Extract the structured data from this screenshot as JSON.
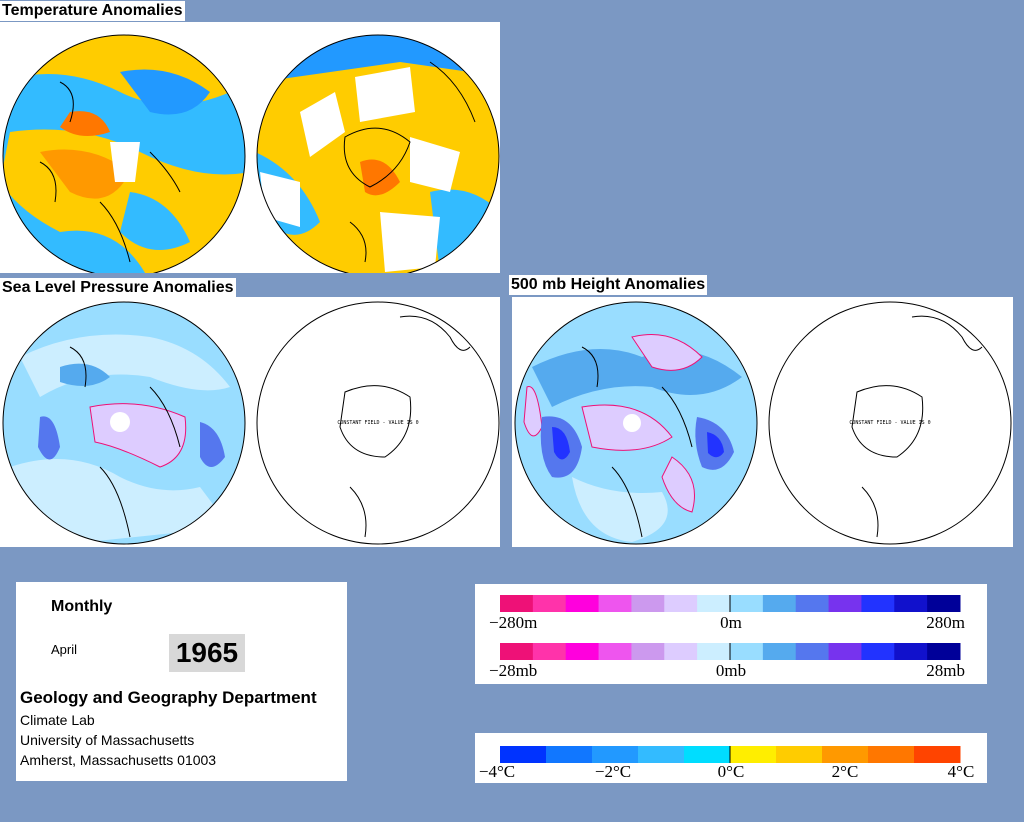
{
  "panels": {
    "temperature": {
      "title": "Temperature Anomalies"
    },
    "slp": {
      "title": "Sea Level Pressure Anomalies",
      "constant_label": "CONSTANT FIELD - VALUE IS 0"
    },
    "h500": {
      "title": "500 mb Height Anomalies",
      "constant_label": "CONSTANT FIELD - VALUE IS 0"
    }
  },
  "info": {
    "period": "Monthly",
    "month": "April",
    "year": "1965",
    "department": "Geology and Geography Department",
    "lab": "Climate Lab",
    "university": "University of Massachusetts",
    "address": "Amherst, Massachusetts 01003"
  },
  "legends": {
    "height": {
      "min_label": "−280m",
      "mid_label": "0m",
      "max_label": "280m"
    },
    "pressure": {
      "min_label": "−28mb",
      "mid_label": "0mb",
      "max_label": "28mb"
    },
    "temperature": {
      "labels": [
        "−4°C",
        "−2°C",
        "0°C",
        "2°C",
        "4°C"
      ]
    }
  },
  "colors": {
    "background": "#7b98c3",
    "height_scale": [
      "#ee1177",
      "#ff33aa",
      "#ff00dd",
      "#ee55ee",
      "#cc99ee",
      "#ddccff",
      "#cceeff",
      "#99ddff",
      "#55aaee",
      "#5577ee",
      "#7733ee",
      "#2233ff",
      "#1111cc",
      "#000099"
    ],
    "temp_scale": [
      "#0033ff",
      "#1177ff",
      "#2299ff",
      "#33bbff",
      "#00ddff",
      "#ffee00",
      "#ffcc00",
      "#ff9900",
      "#ff7700",
      "#ff4400"
    ]
  }
}
